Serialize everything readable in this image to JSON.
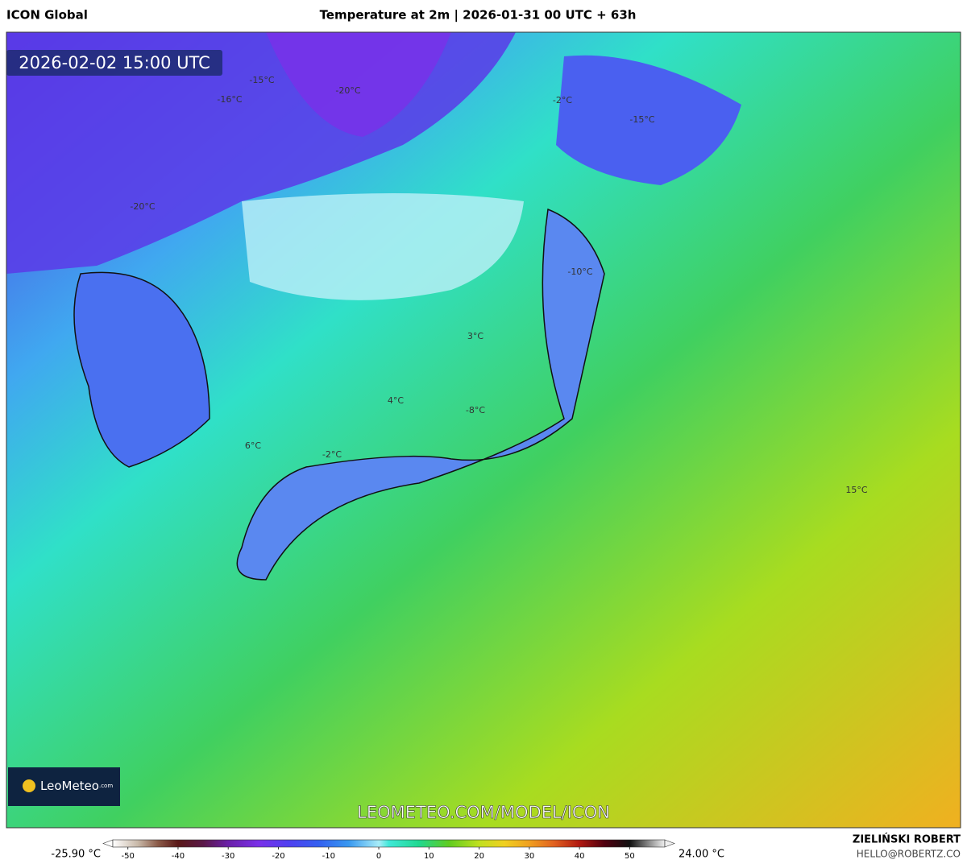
{
  "header": {
    "model": "ICON Global",
    "title": "Temperature at 2m | 2026-01-31 00 UTC + 63h"
  },
  "map": {
    "valid_time": "2026-02-02 15:00 UTC",
    "contour_labels": [
      "-15°C",
      "-20°C",
      "-16°C",
      "-2°C",
      "-15°C",
      "-20°C",
      "-10°C",
      "3°C",
      "4°C",
      "-8°C",
      "6°C",
      "-2°C",
      "15°C"
    ],
    "logo": "LeoMeteo",
    "logo_suffix": ".com",
    "watermark": "LEOMETEO.COM/MODEL/ICON"
  },
  "colorbar": {
    "min_label": "-25.90 °C",
    "max_label": "24.00 °C",
    "lim": [
      -53,
      57
    ],
    "ticks": [
      -50,
      -40,
      -30,
      -20,
      -10,
      0,
      10,
      20,
      30,
      40,
      50
    ],
    "stops": [
      {
        "value": -53,
        "color": "#ffffff"
      },
      {
        "value": -48,
        "color": "#c8b8a8"
      },
      {
        "value": -44,
        "color": "#8a5a48"
      },
      {
        "value": -40,
        "color": "#5a1818"
      },
      {
        "value": -35,
        "color": "#5a1848"
      },
      {
        "value": -30,
        "color": "#6a20a8"
      },
      {
        "value": -24,
        "color": "#7a30e8"
      },
      {
        "value": -18,
        "color": "#5040f0"
      },
      {
        "value": -12,
        "color": "#3460f0"
      },
      {
        "value": -6,
        "color": "#3898f0"
      },
      {
        "value": 0,
        "color": "#a8ecf8"
      },
      {
        "value": 2,
        "color": "#40e8d8"
      },
      {
        "value": 8,
        "color": "#20d890"
      },
      {
        "value": 14,
        "color": "#60cc20"
      },
      {
        "value": 20,
        "color": "#c0e020"
      },
      {
        "value": 25,
        "color": "#f0d020"
      },
      {
        "value": 30,
        "color": "#f0a020"
      },
      {
        "value": 35,
        "color": "#e06020"
      },
      {
        "value": 40,
        "color": "#b01810"
      },
      {
        "value": 45,
        "color": "#500010"
      },
      {
        "value": 50,
        "color": "#101010"
      },
      {
        "value": 54,
        "color": "#909090"
      },
      {
        "value": 57,
        "color": "#f0f0f0"
      }
    ]
  },
  "footer": {
    "author": "ZIELIŃSKI ROBERT",
    "email": "HELLO@ROBERTZ.CO"
  }
}
